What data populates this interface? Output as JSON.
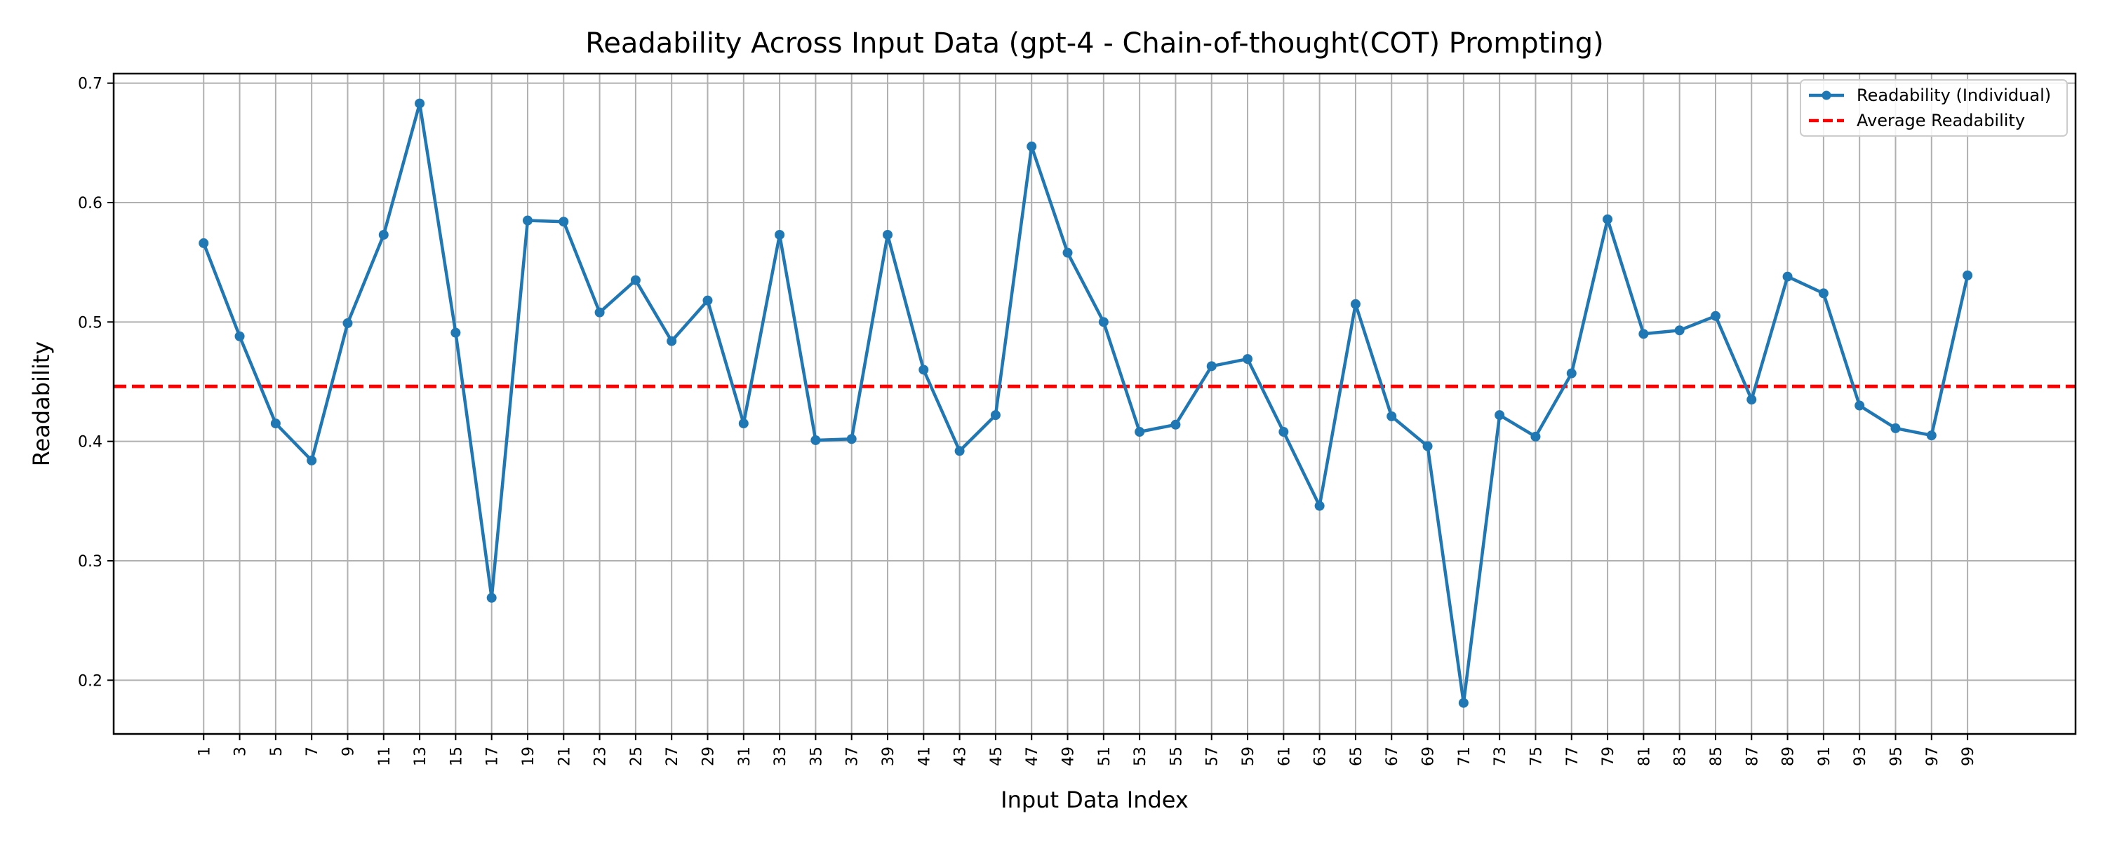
{
  "chart_data": {
    "type": "line",
    "title": "Readability Across Input Data (gpt-4 - Chain-of-thought(COT) Prompting)",
    "xlabel": "Input Data Index",
    "ylabel": "Readability",
    "xlim": [
      -4,
      105
    ],
    "ylim": [
      0.155,
      0.708
    ],
    "yticks": [
      0.2,
      0.3,
      0.4,
      0.5,
      0.6,
      0.7
    ],
    "ytick_labels": [
      "0.2",
      "0.3",
      "0.4",
      "0.5",
      "0.6",
      "0.7"
    ],
    "xticks": [
      1,
      3,
      5,
      7,
      9,
      11,
      13,
      15,
      17,
      19,
      21,
      23,
      25,
      27,
      29,
      31,
      33,
      35,
      37,
      39,
      41,
      43,
      45,
      47,
      49,
      51,
      53,
      55,
      57,
      59,
      61,
      63,
      65,
      67,
      69,
      71,
      73,
      75,
      77,
      79,
      81,
      83,
      85,
      87,
      89,
      91,
      93,
      95,
      97,
      99
    ],
    "xtick_labels": [
      "1",
      "3",
      "5",
      "7",
      "9",
      "11",
      "13",
      "15",
      "17",
      "19",
      "21",
      "23",
      "25",
      "27",
      "29",
      "31",
      "33",
      "35",
      "37",
      "39",
      "41",
      "43",
      "45",
      "47",
      "49",
      "51",
      "53",
      "55",
      "57",
      "59",
      "61",
      "63",
      "65",
      "67",
      "69",
      "71",
      "73",
      "75",
      "77",
      "79",
      "81",
      "83",
      "85",
      "87",
      "89",
      "91",
      "93",
      "95",
      "97",
      "99"
    ],
    "grid": true,
    "legend_position": "top-right",
    "series": [
      {
        "name": "Readability (Individual)",
        "color": "#1f77b4",
        "style": "solid-line-with-dot-markers",
        "x": [
          1,
          3,
          5,
          7,
          9,
          11,
          13,
          15,
          17,
          19,
          21,
          23,
          25,
          27,
          29,
          31,
          33,
          35,
          37,
          39,
          41,
          43,
          45,
          47,
          49,
          51,
          53,
          55,
          57,
          59,
          61,
          63,
          65,
          67,
          69,
          71,
          73,
          75,
          77,
          79,
          81,
          83,
          85,
          87,
          89,
          91,
          93,
          95,
          97,
          99
        ],
        "values": [
          0.566,
          0.488,
          0.415,
          0.384,
          0.499,
          0.573,
          0.683,
          0.491,
          0.269,
          0.585,
          0.584,
          0.508,
          0.535,
          0.484,
          0.518,
          0.415,
          0.573,
          0.401,
          0.402,
          0.573,
          0.46,
          0.392,
          0.422,
          0.647,
          0.558,
          0.5,
          0.408,
          0.414,
          0.463,
          0.469,
          0.408,
          0.346,
          0.515,
          0.421,
          0.396,
          0.181,
          0.422,
          0.404,
          0.457,
          0.586,
          0.49,
          0.493,
          0.505,
          0.435,
          0.538,
          0.524,
          0.43,
          0.411,
          0.405,
          0.539
        ]
      },
      {
        "name": "Average Readability",
        "color": "#ff0000",
        "style": "dashed-line",
        "values": [
          0.446
        ]
      }
    ]
  }
}
